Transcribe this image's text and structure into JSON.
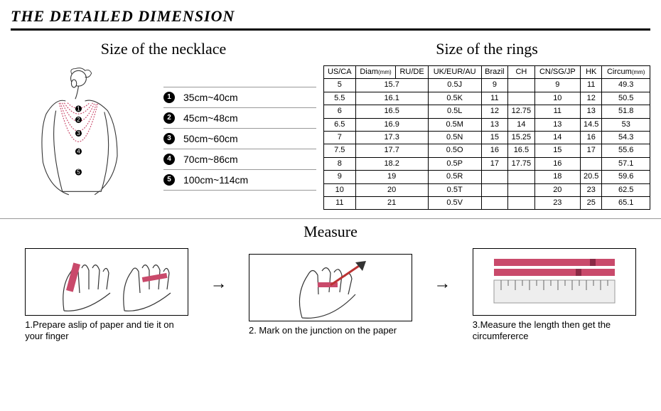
{
  "header": "THE DETAILED DIMENSION",
  "necklace": {
    "title": "Size of the necklace",
    "items": [
      {
        "n": "1",
        "label": "35cm~40cm"
      },
      {
        "n": "2",
        "label": "45cm~48cm"
      },
      {
        "n": "3",
        "label": "50cm~60cm"
      },
      {
        "n": "4",
        "label": "70cm~86cm"
      },
      {
        "n": "5",
        "label": "100cm~114cm"
      }
    ]
  },
  "rings": {
    "title": "Size of the rings",
    "columns": [
      "US/CA",
      "Diam(mm)",
      "RU/DE",
      "UK/EUR/AU",
      "Brazil",
      "CH",
      "CN/SG/JP",
      "HK",
      "Circum(mm)"
    ],
    "rows": [
      [
        "5",
        "15.7",
        "",
        "0.5J",
        "9",
        "",
        "9",
        "11",
        "49.3"
      ],
      [
        "5.5",
        "16.1",
        "",
        "0.5K",
        "11",
        "",
        "10",
        "12",
        "50.5"
      ],
      [
        "6",
        "16.5",
        "",
        "0.5L",
        "12",
        "12.75",
        "11",
        "13",
        "51.8"
      ],
      [
        "6.5",
        "16.9",
        "",
        "0.5M",
        "13",
        "14",
        "13",
        "14.5",
        "53"
      ],
      [
        "7",
        "17.3",
        "",
        "0.5N",
        "15",
        "15.25",
        "14",
        "16",
        "54.3"
      ],
      [
        "7.5",
        "17.7",
        "",
        "0.5O",
        "16",
        "16.5",
        "15",
        "17",
        "55.6"
      ],
      [
        "8",
        "18.2",
        "",
        "0.5P",
        "17",
        "17.75",
        "16",
        "",
        "57.1"
      ],
      [
        "9",
        "19",
        "",
        "0.5R",
        "",
        "",
        "18",
        "20.5",
        "59.6"
      ],
      [
        "10",
        "20",
        "",
        "0.5T",
        "",
        "",
        "20",
        "23",
        "62.5"
      ],
      [
        "11",
        "21",
        "",
        "0.5V",
        "",
        "",
        "23",
        "25",
        "65.1"
      ]
    ]
  },
  "measure": {
    "title": "Measure",
    "steps": [
      {
        "cap": "1.Prepare aslip of paper and tie it on your finger"
      },
      {
        "cap": "2. Mark on the junction on the paper"
      },
      {
        "cap": "3.Measure the length then get the circumfererce"
      }
    ]
  },
  "colors": {
    "accent": "#c94a6b",
    "border": "#000000"
  }
}
